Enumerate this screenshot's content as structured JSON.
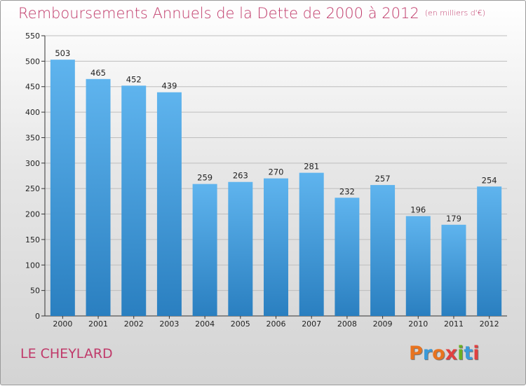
{
  "header": {
    "title": "Remboursements Annuels de la Dette de 2000 à 2012",
    "unit": "(en milliers d'€)"
  },
  "footer": {
    "commune": "LE CHEYLARD",
    "logo_text": "Proxiti"
  },
  "colors": {
    "title": "#c03a6a",
    "bar_top": "#5fb4ee",
    "bar_bottom": "#2a7fc0",
    "logo_letters": [
      "#e8731f",
      "#3a9ad9",
      "#e8731f",
      "#e04040",
      "#6ab023",
      "#3a9ad9",
      "#e04040"
    ]
  },
  "chart_data": {
    "type": "bar",
    "title": "Remboursements Annuels de la Dette de 2000 à 2012",
    "subtitle": "(en milliers d'€)",
    "categories": [
      "2000",
      "2001",
      "2002",
      "2003",
      "2004",
      "2005",
      "2006",
      "2007",
      "2008",
      "2009",
      "2010",
      "2011",
      "2012"
    ],
    "values": [
      503,
      465,
      452,
      439,
      259,
      263,
      270,
      281,
      232,
      257,
      196,
      179,
      254
    ],
    "ylim": [
      0,
      550
    ],
    "yticks": [
      0,
      50,
      100,
      150,
      200,
      250,
      300,
      350,
      400,
      450,
      500,
      550
    ],
    "grid": true,
    "xlabel": "",
    "ylabel": ""
  }
}
